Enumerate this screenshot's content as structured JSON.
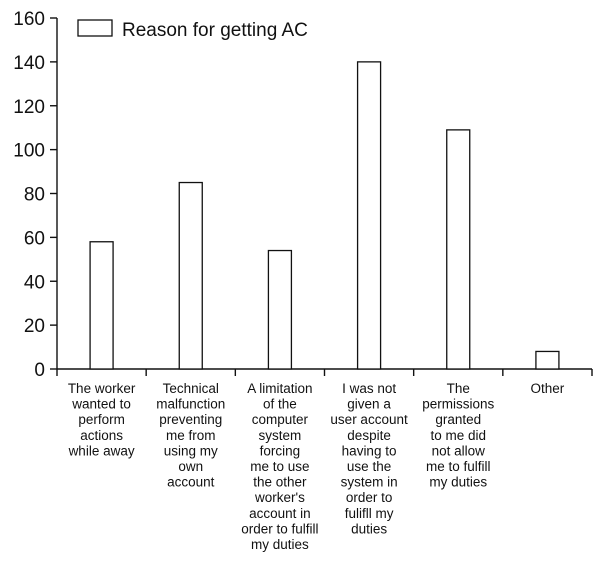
{
  "chart_data": {
    "type": "bar",
    "legend": {
      "label": "Reason for getting AC",
      "placement": "top-left"
    },
    "categories": [
      [
        "The worker",
        "wanted to",
        "perform",
        "actions",
        "while away"
      ],
      [
        "Technical",
        "malfunction",
        "preventing",
        "me from",
        "using my",
        "own",
        "account"
      ],
      [
        "A limitation",
        "of the",
        "computer",
        "system",
        "forcing",
        "me to use",
        "the other",
        "worker's",
        "account in",
        "order to fulfill",
        "my duties"
      ],
      [
        "I was not",
        "given a",
        "user account",
        "despite",
        "having to",
        "use the",
        "system in",
        "order to",
        "fulifll my",
        "duties"
      ],
      [
        "The",
        "permissions",
        "granted",
        "to me did",
        "not allow",
        "me to fulfill",
        "my duties"
      ],
      [
        "Other"
      ]
    ],
    "series": [
      {
        "name": "Reason for getting AC",
        "values": [
          58,
          85,
          54,
          140,
          109,
          8
        ]
      }
    ],
    "ylim": [
      0,
      160
    ],
    "yticks": [
      0,
      20,
      40,
      60,
      80,
      100,
      120,
      140,
      160
    ],
    "grid": false,
    "colors": {
      "bar_fill": "#ffffff",
      "bar_stroke": "#111111",
      "axis": "#111111"
    }
  }
}
